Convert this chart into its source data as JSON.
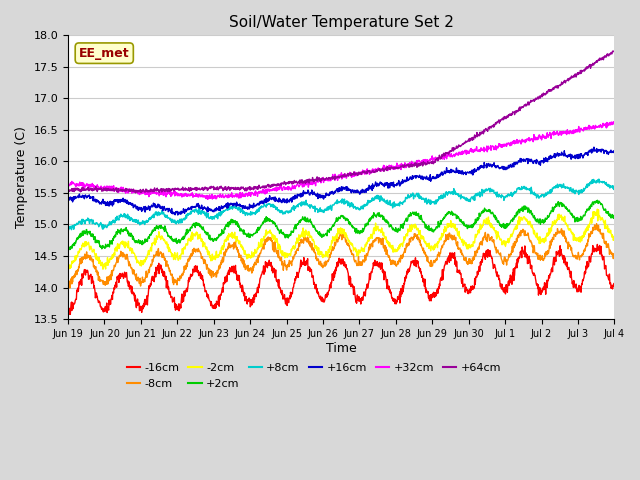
{
  "title": "Soil/Water Temperature Set 2",
  "xlabel": "Time",
  "ylabel": "Temperature (C)",
  "ylim": [
    13.5,
    18.0
  ],
  "fig_facecolor": "#d8d8d8",
  "plot_facecolor": "#ffffff",
  "grid_color": "#cccccc",
  "annotation_text": "EE_met",
  "annotation_bg": "#ffffcc",
  "annotation_border": "#999900",
  "series": [
    {
      "label": "-16cm",
      "color": "#ff0000"
    },
    {
      "label": "-8cm",
      "color": "#ff8c00"
    },
    {
      "label": "-2cm",
      "color": "#ffff00"
    },
    {
      "label": "+2cm",
      "color": "#00cc00"
    },
    {
      "label": "+8cm",
      "color": "#00cccc"
    },
    {
      "label": "+16cm",
      "color": "#0000cc"
    },
    {
      "label": "+32cm",
      "color": "#ff00ff"
    },
    {
      "label": "+64cm",
      "color": "#990099"
    }
  ],
  "x_tick_labels": [
    "Jun 19",
    "Jun 20",
    "Jun 21",
    "Jun 22",
    "Jun 23",
    "Jun 24",
    "Jun 25",
    "Jun 26",
    "Jun 27",
    "Jun 28",
    "Jun 29",
    "Jun 30",
    "Jul 1",
    "Jul 2",
    "Jul 3",
    "Jul 4"
  ],
  "n_points": 1440,
  "seed": 42
}
